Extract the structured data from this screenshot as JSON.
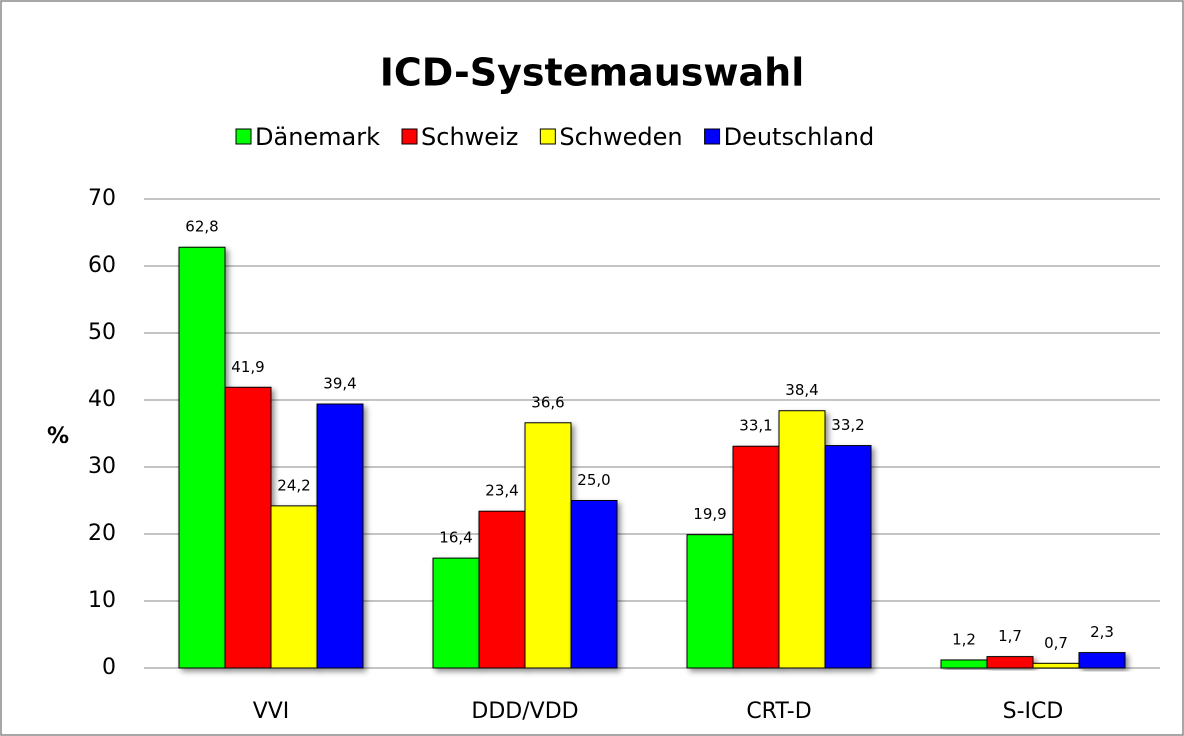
{
  "chart_data": {
    "type": "bar",
    "title": "ICD-Systemauswahl",
    "y_label": "%",
    "categories": [
      "VVI",
      "DDD/VDD",
      "CRT-D",
      "S-ICD"
    ],
    "series": [
      {
        "name": "Dänemark",
        "color": "#00ff00",
        "values": [
          62.8,
          16.4,
          19.9,
          1.2
        ],
        "value_labels": [
          "62,8",
          "16,4",
          "19,9",
          "1,2"
        ]
      },
      {
        "name": "Schweiz",
        "color": "#ff0000",
        "values": [
          41.9,
          23.4,
          33.1,
          1.7
        ],
        "value_labels": [
          "41,9",
          "23,4",
          "33,1",
          "1,7"
        ]
      },
      {
        "name": "Schweden",
        "color": "#ffff00",
        "values": [
          24.2,
          36.6,
          38.4,
          0.7
        ],
        "value_labels": [
          "24,2",
          "36,6",
          "38,4",
          "0,7"
        ]
      },
      {
        "name": "Deutschland",
        "color": "#0000ff",
        "values": [
          39.4,
          25.0,
          33.2,
          2.3
        ],
        "value_labels": [
          "39,4",
          "25,0",
          "33,2",
          "2,3"
        ]
      }
    ],
    "ylim": [
      0,
      70
    ],
    "yticks": [
      0,
      10,
      20,
      30,
      40,
      50,
      60,
      70
    ],
    "grid": true,
    "legend": "top"
  }
}
